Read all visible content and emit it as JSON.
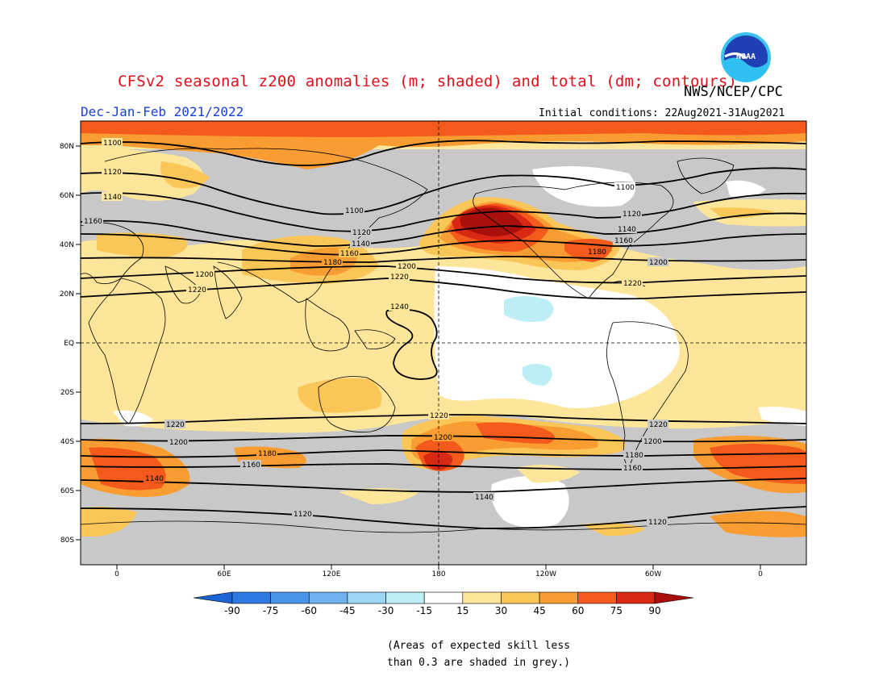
{
  "header": {
    "title": "CFSv2 seasonal z200 anomalies (m; shaded) and total (dm; contours)",
    "agency": "NWS/NCEP/CPC",
    "period": "Dec-Jan-Feb 2021/2022",
    "initial_conditions": "Initial conditions: 22Aug2021-31Aug2021"
  },
  "logo": {
    "text": "NOAA",
    "icon": "noaa-logo-icon"
  },
  "axes": {
    "lat_ticks": [
      "80N",
      "60N",
      "40N",
      "20N",
      "EQ",
      "20S",
      "40S",
      "60S",
      "80S"
    ],
    "lon_ticks": [
      "0",
      "60E",
      "120E",
      "180",
      "120W",
      "60W",
      "0"
    ]
  },
  "contour_labels": {
    "c1100": "1100",
    "c1120": "1120",
    "c1140": "1140",
    "c1160": "1160",
    "c1180": "1180",
    "c1200": "1200",
    "c1220": "1220",
    "c1240": "1240"
  },
  "colorbar": {
    "labels": [
      "-90",
      "-75",
      "-60",
      "-45",
      "-30",
      "-15",
      "15",
      "30",
      "45",
      "60",
      "75",
      "90"
    ],
    "colors": [
      "#1b63d6",
      "#2e79e3",
      "#4a94ea",
      "#6fb2f0",
      "#9bd7f4",
      "#bdeef6",
      "#ffffff",
      "#fde59a",
      "#fbc658",
      "#f99d33",
      "#f35a1c",
      "#d92814",
      "#a9100c"
    ]
  },
  "note": "(Areas of expected skill less\nthan 0.3 are shaded in grey.)",
  "colors": {
    "title": "#e0101a",
    "period": "#1a3fd6",
    "grey_low_skill": "#c8c8c8",
    "background_anomaly": "#fde59a"
  }
}
